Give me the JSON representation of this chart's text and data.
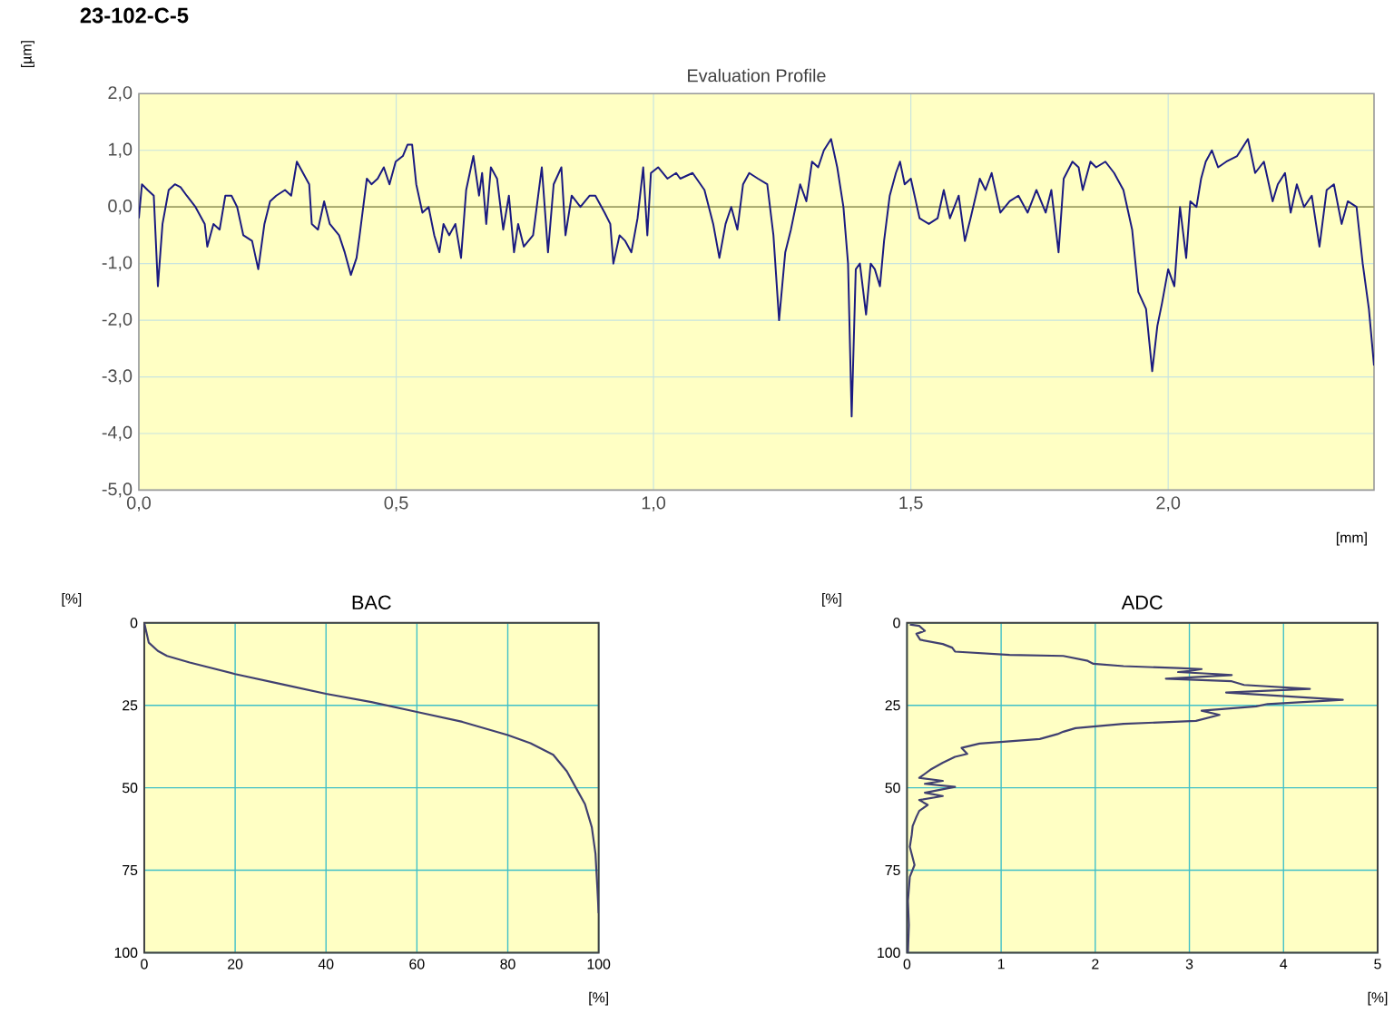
{
  "chart_data": [
    {
      "type": "line",
      "title": "23-102-C-5",
      "subtitle": "Evaluation Profile",
      "xlabel": "[mm]",
      "ylabel": "[µm]",
      "color": "#1a1a80",
      "grid": true,
      "xlim": [
        0,
        2.4
      ],
      "ylim": [
        -5,
        2
      ],
      "xticks": [
        {
          "value": 0,
          "label": "0,0"
        },
        {
          "value": 0.5,
          "label": "0,5"
        },
        {
          "value": 1,
          "label": "1,0"
        },
        {
          "value": 1.5,
          "label": "1,5"
        },
        {
          "value": 2,
          "label": "2,0"
        }
      ],
      "yticks": [
        {
          "value": 2,
          "label": "2,0"
        },
        {
          "value": 1,
          "label": "1,0"
        },
        {
          "value": 0,
          "label": "0,0"
        },
        {
          "value": -1,
          "label": "-1,0"
        },
        {
          "value": -2,
          "label": "-2,0"
        },
        {
          "value": -3,
          "label": "-3,0"
        },
        {
          "value": -4,
          "label": "-4,0"
        },
        {
          "value": -5,
          "label": "-5,0"
        }
      ],
      "ref_lines": [
        {
          "axis": "y",
          "value": 0,
          "color": "#a0a060"
        }
      ],
      "x": [
        0,
        0.006,
        0.017,
        0.029,
        0.037,
        0.046,
        0.058,
        0.07,
        0.081,
        0.093,
        0.11,
        0.128,
        0.133,
        0.145,
        0.157,
        0.168,
        0.18,
        0.191,
        0.203,
        0.22,
        0.232,
        0.244,
        0.255,
        0.267,
        0.284,
        0.296,
        0.307,
        0.319,
        0.331,
        0.336,
        0.348,
        0.36,
        0.371,
        0.389,
        0.4,
        0.412,
        0.423,
        0.429,
        0.443,
        0.452,
        0.464,
        0.476,
        0.487,
        0.499,
        0.513,
        0.522,
        0.531,
        0.539,
        0.551,
        0.563,
        0.574,
        0.584,
        0.592,
        0.603,
        0.615,
        0.626,
        0.636,
        0.65,
        0.661,
        0.667,
        0.675,
        0.684,
        0.696,
        0.708,
        0.719,
        0.729,
        0.737,
        0.748,
        0.766,
        0.783,
        0.795,
        0.806,
        0.821,
        0.829,
        0.841,
        0.858,
        0.876,
        0.887,
        0.905,
        0.916,
        0.922,
        0.934,
        0.945,
        0.957,
        0.969,
        0.98,
        0.988,
        0.995,
        1.009,
        1.027,
        1.044,
        1.052,
        1.076,
        1.099,
        1.116,
        1.128,
        1.14,
        1.151,
        1.163,
        1.174,
        1.186,
        1.203,
        1.221,
        1.233,
        1.244,
        1.256,
        1.267,
        1.285,
        1.297,
        1.308,
        1.32,
        1.331,
        1.345,
        1.357,
        1.369,
        1.378,
        1.385,
        1.393,
        1.401,
        1.413,
        1.422,
        1.43,
        1.44,
        1.448,
        1.459,
        1.471,
        1.479,
        1.488,
        1.5,
        1.517,
        1.535,
        1.552,
        1.564,
        1.576,
        1.593,
        1.605,
        1.616,
        1.634,
        1.645,
        1.657,
        1.674,
        1.692,
        1.709,
        1.727,
        1.744,
        1.762,
        1.773,
        1.787,
        1.797,
        1.814,
        1.826,
        1.834,
        1.849,
        1.86,
        1.878,
        1.895,
        1.913,
        1.93,
        1.942,
        1.957,
        1.969,
        1.979,
        1.988,
        2.0,
        2.012,
        2.023,
        2.035,
        2.043,
        2.055,
        2.064,
        2.073,
        2.085,
        2.097,
        2.113,
        2.134,
        2.155,
        2.169,
        2.186,
        2.203,
        2.213,
        2.227,
        2.238,
        2.25,
        2.264,
        2.279,
        2.294,
        2.308,
        2.322,
        2.337,
        2.349,
        2.366,
        2.378,
        2.39,
        2.4
      ],
      "values": [
        -0.2,
        0.4,
        0.3,
        0.2,
        -1.4,
        -0.3,
        0.3,
        0.4,
        0.35,
        0.2,
        0.0,
        -0.3,
        -0.7,
        -0.3,
        -0.4,
        0.2,
        0.2,
        0.0,
        -0.5,
        -0.6,
        -1.1,
        -0.3,
        0.1,
        0.2,
        0.3,
        0.2,
        0.8,
        0.6,
        0.4,
        -0.3,
        -0.4,
        0.1,
        -0.3,
        -0.5,
        -0.8,
        -1.2,
        -0.9,
        -0.5,
        0.5,
        0.4,
        0.5,
        0.7,
        0.4,
        0.8,
        0.9,
        1.1,
        1.1,
        0.4,
        -0.1,
        0.0,
        -0.5,
        -0.8,
        -0.3,
        -0.5,
        -0.3,
        -0.9,
        0.3,
        0.9,
        0.2,
        0.6,
        -0.3,
        0.7,
        0.5,
        -0.4,
        0.2,
        -0.8,
        -0.3,
        -0.7,
        -0.5,
        0.7,
        -0.8,
        0.4,
        0.7,
        -0.5,
        0.2,
        0.0,
        0.2,
        0.2,
        -0.1,
        -0.3,
        -1.0,
        -0.5,
        -0.6,
        -0.8,
        -0.2,
        0.7,
        -0.5,
        0.6,
        0.7,
        0.5,
        0.6,
        0.5,
        0.6,
        0.3,
        -0.3,
        -0.9,
        -0.3,
        0.0,
        -0.4,
        0.4,
        0.6,
        0.5,
        0.4,
        -0.5,
        -2.0,
        -0.8,
        -0.4,
        0.4,
        0.1,
        0.8,
        0.7,
        1.0,
        1.2,
        0.7,
        0.0,
        -1.0,
        -3.7,
        -1.1,
        -1.0,
        -1.9,
        -1.0,
        -1.1,
        -1.4,
        -0.6,
        0.2,
        0.6,
        0.8,
        0.4,
        0.5,
        -0.2,
        -0.3,
        -0.2,
        0.3,
        -0.2,
        0.2,
        -0.6,
        -0.2,
        0.5,
        0.3,
        0.6,
        -0.1,
        0.1,
        0.2,
        -0.1,
        0.3,
        -0.1,
        0.3,
        -0.8,
        0.5,
        0.8,
        0.7,
        0.3,
        0.8,
        0.7,
        0.8,
        0.6,
        0.3,
        -0.4,
        -1.5,
        -1.8,
        -2.9,
        -2.1,
        -1.7,
        -1.1,
        -1.4,
        0.0,
        -0.9,
        0.1,
        0.0,
        0.5,
        0.8,
        1.0,
        0.7,
        0.8,
        0.9,
        1.2,
        0.6,
        0.8,
        0.1,
        0.4,
        0.6,
        -0.1,
        0.4,
        0.0,
        0.2,
        -0.7,
        0.3,
        0.4,
        -0.3,
        0.1,
        0.0,
        -1.0,
        -1.8,
        -2.8
      ]
    },
    {
      "type": "line",
      "title": "BAC",
      "xlabel": "[%]",
      "ylabel": "[%]",
      "color": "#404070",
      "grid": true,
      "xlim": [
        0,
        100
      ],
      "ylim": [
        100,
        0
      ],
      "xticks": [
        0,
        20,
        40,
        60,
        80,
        100
      ],
      "yticks": [
        0,
        25,
        50,
        75,
        100
      ],
      "x": [
        0,
        0.5,
        1,
        3,
        5,
        10,
        20,
        30,
        40,
        50,
        60,
        70,
        80,
        85,
        90,
        93,
        95,
        97,
        98.5,
        99.3,
        99.7,
        100
      ],
      "values": [
        0,
        3,
        6,
        8.5,
        10,
        12,
        15.5,
        18.5,
        21.5,
        24,
        27,
        30,
        34,
        36.5,
        40,
        45,
        50,
        55,
        62,
        70,
        80,
        88
      ]
    },
    {
      "type": "line",
      "title": "ADC",
      "xlabel": "[%]",
      "ylabel": "[%]",
      "color": "#404070",
      "grid": true,
      "xlim": [
        0,
        5
      ],
      "ylim": [
        100,
        0
      ],
      "xticks": [
        0,
        1,
        2,
        3,
        4,
        5
      ],
      "yticks": [
        0,
        25,
        50,
        75,
        100
      ],
      "x": [
        0.03,
        0.13,
        0.19,
        0.1,
        0.14,
        0.38,
        0.48,
        0.51,
        1.09,
        1.66,
        1.92,
        1.98,
        2.3,
        2.88,
        3.13,
        3.0,
        2.88,
        3.29,
        3.45,
        2.75,
        3.45,
        3.58,
        4.28,
        3.39,
        4.63,
        3.83,
        3.71,
        3.13,
        3.32,
        3.07,
        2.3,
        1.79,
        1.66,
        1.6,
        1.41,
        0.77,
        0.58,
        0.64,
        0.51,
        0.38,
        0.26,
        0.13,
        0.38,
        0.19,
        0.51,
        0.19,
        0.38,
        0.13,
        0.22,
        0.13,
        0.1,
        0.06,
        0.05,
        0.03,
        0.08,
        0.03,
        0.01,
        0.02,
        0.01
      ],
      "values": [
        0.5,
        0.9,
        2.4,
        3.3,
        5.1,
        6.4,
        7.5,
        8.7,
        9.7,
        10.0,
        11.5,
        12.4,
        13.1,
        13.7,
        14.0,
        14.6,
        14.9,
        15.5,
        15.8,
        16.9,
        17.7,
        18.8,
        20.0,
        21.1,
        23.3,
        24.6,
        25.3,
        26.6,
        27.9,
        29.7,
        30.6,
        31.9,
        33.0,
        33.7,
        35.2,
        36.6,
        37.9,
        39.7,
        40.6,
        42.4,
        44.3,
        47.0,
        47.9,
        48.8,
        49.7,
        51.5,
        52.5,
        53.7,
        55.2,
        57.0,
        58.8,
        61.6,
        64.3,
        67.9,
        73.4,
        77.0,
        84.3,
        91.6,
        100
      ]
    }
  ]
}
